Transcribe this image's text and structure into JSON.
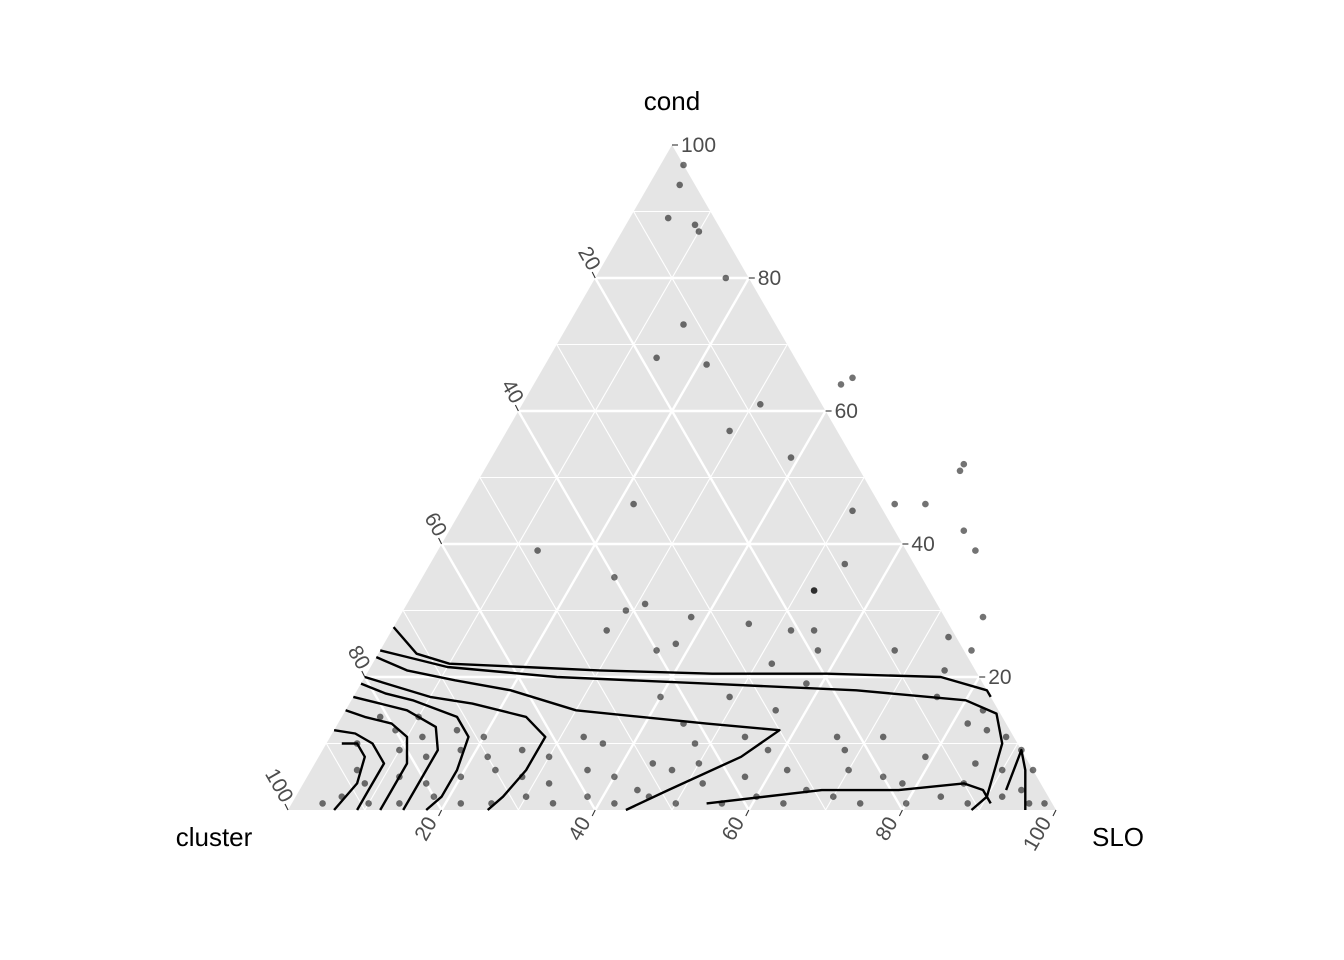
{
  "chart_data": {
    "type": "ternary scatter with density contours",
    "axes": {
      "top": "cond",
      "left": "cluster",
      "right": "SLO"
    },
    "ticks": [
      20,
      40,
      60,
      80,
      100
    ],
    "tick_labels": [
      "20",
      "40",
      "60",
      "80",
      "100"
    ],
    "range": [
      0,
      100
    ],
    "grid": true,
    "colors": {
      "panel": "#e5e5e5",
      "grid": "#ffffff",
      "points": "#000000",
      "contours": "#000000"
    },
    "points": [
      {
        "slo": 3,
        "cond": 97
      },
      {
        "slo": 4,
        "cond": 94
      },
      {
        "slo": 5,
        "cond": 89
      },
      {
        "slo": 9,
        "cond": 88
      },
      {
        "slo": 10,
        "cond": 87
      },
      {
        "slo": 17,
        "cond": 80
      },
      {
        "slo": 15,
        "cond": 73
      },
      {
        "slo": 14,
        "cond": 68
      },
      {
        "slo": 21,
        "cond": 67
      },
      {
        "slo": 41,
        "cond": 65
      },
      {
        "slo": 40,
        "cond": 64
      },
      {
        "slo": 31,
        "cond": 61
      },
      {
        "slo": 29,
        "cond": 57
      },
      {
        "slo": 39,
        "cond": 53
      },
      {
        "slo": 62,
        "cond": 52
      },
      {
        "slo": 62,
        "cond": 51
      },
      {
        "slo": 51,
        "cond": 45
      },
      {
        "slo": 60,
        "cond": 46
      },
      {
        "slo": 22,
        "cond": 46
      },
      {
        "slo": 54,
        "cond": 37
      },
      {
        "slo": 56,
        "cond": 46
      },
      {
        "slo": 67,
        "cond": 42
      },
      {
        "slo": 70,
        "cond": 39
      },
      {
        "slo": 76,
        "cond": 29
      },
      {
        "slo": 75,
        "cond": 21
      },
      {
        "slo": 52,
        "cond": 33
      },
      {
        "slo": 52,
        "cond": 33
      },
      {
        "slo": 55,
        "cond": 27
      },
      {
        "slo": 46,
        "cond": 28
      },
      {
        "slo": 57,
        "cond": 24
      },
      {
        "slo": 38,
        "cond": 25
      },
      {
        "slo": 36,
        "cond": 24
      },
      {
        "slo": 31,
        "cond": 31
      },
      {
        "slo": 29,
        "cond": 30
      },
      {
        "slo": 38,
        "cond": 29
      },
      {
        "slo": 52,
        "cond": 22
      },
      {
        "slo": 52,
        "cond": 27
      },
      {
        "slo": 67,
        "cond": 24
      },
      {
        "slo": 58,
        "cond": 19
      },
      {
        "slo": 77,
        "cond": 24
      },
      {
        "slo": 73,
        "cond": 26
      },
      {
        "slo": 13,
        "cond": 39
      },
      {
        "slo": 25,
        "cond": 35
      },
      {
        "slo": 28,
        "cond": 27
      },
      {
        "slo": 40,
        "cond": 17
      },
      {
        "slo": 49,
        "cond": 17
      },
      {
        "slo": 76,
        "cond": 17
      },
      {
        "slo": 82,
        "cond": 13
      },
      {
        "slo": 83,
        "cond": 15
      },
      {
        "slo": 85,
        "cond": 12
      },
      {
        "slo": 33,
        "cond": 11
      },
      {
        "slo": 45,
        "cond": 13
      },
      {
        "slo": 56,
        "cond": 15
      },
      {
        "slo": 66,
        "cond": 11
      },
      {
        "slo": 79,
        "cond": 8
      },
      {
        "slo": 86,
        "cond": 7
      },
      {
        "slo": 90,
        "cond": 6
      },
      {
        "slo": 94,
        "cond": 3
      },
      {
        "slo": 96,
        "cond": 1
      },
      {
        "slo": 98,
        "cond": 1
      },
      {
        "slo": 92,
        "cond": 2
      },
      {
        "slo": 88,
        "cond": 1
      },
      {
        "slo": 84,
        "cond": 2
      },
      {
        "slo": 80,
        "cond": 1
      },
      {
        "slo": 74,
        "cond": 1
      },
      {
        "slo": 70,
        "cond": 2
      },
      {
        "slo": 64,
        "cond": 1
      },
      {
        "slo": 60,
        "cond": 2
      },
      {
        "slo": 56,
        "cond": 1
      },
      {
        "slo": 50,
        "cond": 1
      },
      {
        "slo": 46,
        "cond": 2
      },
      {
        "slo": 42,
        "cond": 1
      },
      {
        "slo": 38,
        "cond": 2
      },
      {
        "slo": 34,
        "cond": 1
      },
      {
        "slo": 30,
        "cond": 2
      },
      {
        "slo": 26,
        "cond": 1
      },
      {
        "slo": 22,
        "cond": 1
      },
      {
        "slo": 18,
        "cond": 2
      },
      {
        "slo": 14,
        "cond": 1
      },
      {
        "slo": 10,
        "cond": 1
      },
      {
        "slo": 6,
        "cond": 2
      },
      {
        "slo": 4,
        "cond": 1
      },
      {
        "slo": 62,
        "cond": 6
      },
      {
        "slo": 57,
        "cond": 5
      },
      {
        "slo": 52,
        "cond": 4
      },
      {
        "slo": 47,
        "cond": 6
      },
      {
        "slo": 44,
        "cond": 7
      },
      {
        "slo": 40,
        "cond": 5
      },
      {
        "slo": 36,
        "cond": 6
      },
      {
        "slo": 32,
        "cond": 4
      },
      {
        "slo": 28,
        "cond": 5
      },
      {
        "slo": 24,
        "cond": 6
      },
      {
        "slo": 20,
        "cond": 5
      },
      {
        "slo": 16,
        "cond": 4
      },
      {
        "slo": 12,
        "cond": 5
      },
      {
        "slo": 8,
        "cond": 4
      },
      {
        "slo": 6,
        "cond": 6
      },
      {
        "slo": 10,
        "cond": 9
      },
      {
        "slo": 14,
        "cond": 8
      },
      {
        "slo": 18,
        "cond": 9
      },
      {
        "slo": 22,
        "cond": 8
      },
      {
        "slo": 26,
        "cond": 9
      },
      {
        "slo": 30,
        "cond": 8
      },
      {
        "slo": 4,
        "cond": 10
      },
      {
        "slo": 8,
        "cond": 12
      },
      {
        "slo": 12,
        "cond": 11
      },
      {
        "slo": 16,
        "cond": 12
      },
      {
        "slo": 20,
        "cond": 11
      },
      {
        "slo": 5,
        "cond": 14
      },
      {
        "slo": 10,
        "cond": 14
      },
      {
        "slo": 70,
        "cond": 6
      },
      {
        "slo": 75,
        "cond": 5
      },
      {
        "slo": 68,
        "cond": 9
      },
      {
        "slo": 72,
        "cond": 11
      },
      {
        "slo": 88,
        "cond": 11
      },
      {
        "slo": 91,
        "cond": 9
      },
      {
        "slo": 94,
        "cond": 6
      },
      {
        "slo": 58,
        "cond": 9
      },
      {
        "slo": 54,
        "cond": 11
      },
      {
        "slo": 48,
        "cond": 10
      },
      {
        "slo": 44,
        "cond": 3
      },
      {
        "slo": 66,
        "cond": 3
      },
      {
        "slo": 78,
        "cond": 4
      },
      {
        "slo": 86,
        "cond": 4
      },
      {
        "slo": 50,
        "cond": 7
      },
      {
        "slo": 36,
        "cond": 10
      }
    ],
    "contours": [
      [
        [
          0,
          27.5
        ],
        [
          5,
          23.5
        ],
        [
          10,
          22
        ],
        [
          20,
          21.5
        ],
        [
          30,
          21
        ],
        [
          45,
          20.5
        ],
        [
          60,
          20.5
        ],
        [
          75,
          20
        ],
        [
          82,
          18
        ],
        [
          83,
          17
        ]
      ],
      [
        [
          0,
          24
        ],
        [
          4,
          23
        ],
        [
          10,
          21.5
        ],
        [
          25,
          20
        ],
        [
          45,
          19
        ],
        [
          65,
          18
        ],
        [
          80,
          16.5
        ],
        [
          85,
          14.5
        ],
        [
          88,
          10
        ],
        [
          89,
          6
        ],
        [
          90,
          2
        ],
        [
          89,
          0
        ]
      ],
      [
        [
          0,
          23
        ],
        [
          5,
          21
        ],
        [
          12,
          19.5
        ],
        [
          20,
          18
        ],
        [
          30,
          15
        ],
        [
          48,
          13
        ],
        [
          58,
          12
        ],
        [
          55,
          8
        ],
        [
          48,
          3
        ],
        [
          44,
          0
        ]
      ],
      [
        [
          0,
          20
        ],
        [
          5,
          18.5
        ],
        [
          10,
          17
        ],
        [
          16,
          16
        ],
        [
          24,
          14
        ],
        [
          28,
          11
        ],
        [
          28,
          6
        ],
        [
          27,
          2
        ],
        [
          26,
          0
        ]
      ],
      [
        [
          0,
          19
        ],
        [
          4,
          17.5
        ],
        [
          8,
          16.5
        ],
        [
          15,
          14
        ],
        [
          18,
          11
        ],
        [
          19,
          6
        ],
        [
          19,
          2
        ],
        [
          18,
          0
        ]
      ],
      [
        [
          0,
          17
        ],
        [
          4,
          16
        ],
        [
          8,
          15
        ],
        [
          13,
          12.5
        ],
        [
          15,
          9
        ],
        [
          15,
          4
        ],
        [
          15,
          0
        ]
      ],
      [
        [
          0,
          15
        ],
        [
          3,
          14
        ],
        [
          7,
          13
        ],
        [
          10,
          11
        ],
        [
          12,
          7
        ],
        [
          12,
          3
        ],
        [
          12,
          0
        ]
      ],
      [
        [
          0,
          12
        ],
        [
          3,
          11.5
        ],
        [
          6,
          10
        ],
        [
          9,
          7
        ],
        [
          9,
          3
        ],
        [
          9,
          0
        ]
      ],
      [
        [
          2,
          10
        ],
        [
          4,
          10
        ],
        [
          6,
          8
        ],
        [
          7,
          4
        ],
        [
          6,
          0
        ]
      ],
      [
        [
          96,
          0
        ],
        [
          93,
          6
        ],
        [
          91,
          9
        ],
        [
          92,
          3
        ]
      ],
      [
        [
          54,
          1
        ],
        [
          68,
          3
        ],
        [
          78,
          3
        ],
        [
          86,
          4
        ],
        [
          89,
          3
        ],
        [
          91,
          1
        ]
      ]
    ]
  }
}
